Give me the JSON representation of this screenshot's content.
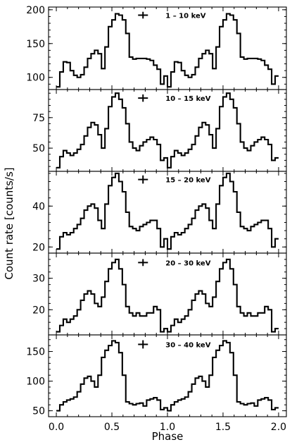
{
  "chart_data": {
    "type": "line",
    "step": true,
    "xlabel": "Phase",
    "ylabel": "Count rate [counts/s]",
    "xlim": [
      -0.07,
      2.07
    ],
    "x_ticks": [
      "0.0",
      "0.5",
      "1.0",
      "1.5",
      "2.0"
    ],
    "x_tick_values": [
      0.0,
      0.5,
      1.0,
      1.5,
      2.0
    ],
    "bin_width": 0.03125,
    "profile_phase_start": [
      0.0,
      0.03125,
      0.0625,
      0.09375,
      0.125,
      0.15625,
      0.1875,
      0.21875,
      0.25,
      0.28125,
      0.3125,
      0.34375,
      0.375,
      0.40625,
      0.4375,
      0.46875,
      0.5,
      0.53125,
      0.5625,
      0.59375,
      0.625,
      0.65625,
      0.6875,
      0.71875,
      0.75,
      0.78125,
      0.8125,
      0.84375,
      0.875,
      0.90625,
      0.9375,
      0.96875
    ],
    "panels": [
      {
        "name": "panel-1-10kev",
        "label": "1 – 10 keV",
        "ylim": [
          82,
          204
        ],
        "y_ticks": [
          "100",
          "150",
          "200"
        ],
        "y_tick_values": [
          100,
          150,
          200
        ],
        "err_y": 192,
        "err_half": 5,
        "profile": [
          86,
          108,
          123,
          122,
          110,
          103,
          100,
          104,
          115,
          128,
          135,
          140,
          135,
          113,
          145,
          175,
          185,
          194,
          192,
          185,
          165,
          130,
          127,
          128,
          128,
          128,
          127,
          125,
          118,
          112,
          90,
          102
        ]
      },
      {
        "name": "panel-10-15kev",
        "label": "10 – 15 keV",
        "ylim": [
          31,
          98
        ],
        "y_ticks": [
          "50",
          "75"
        ],
        "y_tick_values": [
          50,
          75
        ],
        "err_y": 91,
        "err_half": 3,
        "profile": [
          34,
          43,
          48,
          46,
          44,
          46,
          49,
          53,
          60,
          67,
          71,
          69,
          61,
          50,
          66,
          84,
          92,
          95,
          90,
          83,
          70,
          55,
          50,
          48,
          52,
          55,
          57,
          59,
          57,
          53,
          40,
          42
        ]
      },
      {
        "name": "panel-15-20kev",
        "label": "15 – 20 keV",
        "ylim": [
          17,
          57
        ],
        "y_ticks": [
          "20",
          "40"
        ],
        "y_tick_values": [
          20,
          40
        ],
        "err_y": 53,
        "err_half": 2,
        "profile": [
          19,
          25,
          27,
          26,
          27,
          29,
          31,
          34,
          38,
          40,
          41,
          39,
          33,
          29,
          41,
          50,
          54,
          56,
          52,
          47,
          37,
          30,
          29,
          28,
          30,
          31,
          32,
          33,
          33,
          29,
          20,
          24
        ]
      },
      {
        "name": "panel-20-30kev",
        "label": "20 – 30 keV",
        "ylim": [
          12,
          38
        ],
        "y_ticks": [
          "20",
          "30"
        ],
        "y_tick_values": [
          20,
          30
        ],
        "err_y": 35,
        "err_half": 1.1,
        "profile": [
          13,
          15,
          17,
          16,
          17,
          18,
          20,
          23,
          25,
          26,
          25,
          22,
          21,
          24,
          29,
          33,
          35,
          36,
          33,
          28,
          21,
          19,
          18,
          19,
          18,
          18,
          19,
          19,
          21,
          20,
          13,
          14
        ]
      },
      {
        "name": "panel-30-40kev",
        "label": "30 – 40 keV",
        "ylim": [
          40,
          178
        ],
        "y_ticks": [
          "50",
          "100",
          "150"
        ],
        "y_tick_values": [
          50,
          100,
          150
        ],
        "err_y": 162,
        "err_half": 7,
        "profile": [
          50,
          60,
          65,
          68,
          70,
          73,
          82,
          95,
          105,
          108,
          100,
          90,
          110,
          140,
          152,
          160,
          168,
          165,
          148,
          110,
          65,
          62,
          60,
          62,
          63,
          58,
          68,
          70,
          72,
          68,
          52,
          55
        ]
      }
    ]
  }
}
